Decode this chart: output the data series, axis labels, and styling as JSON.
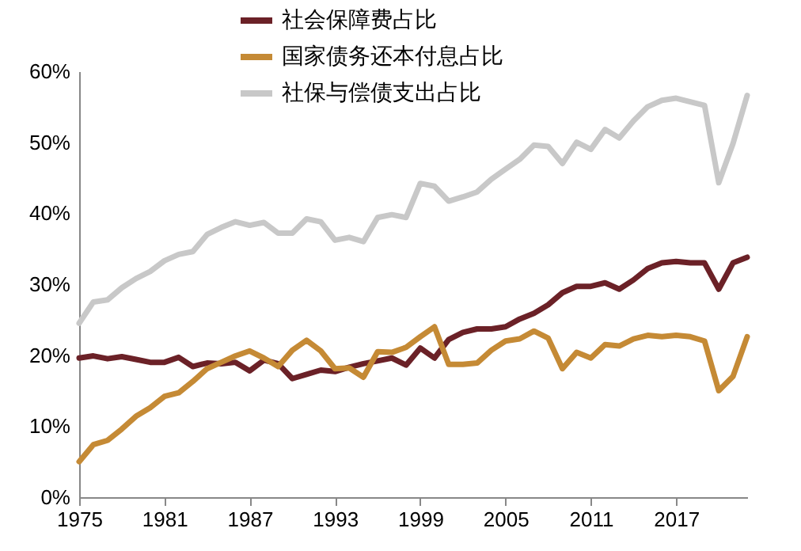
{
  "chart_data": {
    "type": "line",
    "x": [
      1975,
      1976,
      1977,
      1978,
      1979,
      1980,
      1981,
      1982,
      1983,
      1984,
      1985,
      1986,
      1987,
      1988,
      1989,
      1990,
      1991,
      1992,
      1993,
      1994,
      1995,
      1996,
      1997,
      1998,
      1999,
      2000,
      2001,
      2002,
      2003,
      2004,
      2005,
      2006,
      2007,
      2008,
      2009,
      2010,
      2011,
      2012,
      2013,
      2014,
      2015,
      2016,
      2017,
      2018,
      2019,
      2020,
      2021,
      2022
    ],
    "series": [
      {
        "name": "社会保障费占比",
        "color": "#6b2127",
        "values": [
          19.6,
          19.9,
          19.5,
          19.8,
          19.4,
          19,
          19,
          19.7,
          18.4,
          18.9,
          18.8,
          19,
          17.8,
          19.3,
          18.8,
          16.7,
          17.3,
          17.9,
          17.7,
          18.3,
          18.8,
          19.2,
          19.6,
          18.6,
          21,
          19.6,
          22.2,
          23.2,
          23.7,
          23.7,
          24,
          25.1,
          25.9,
          27.1,
          28.8,
          29.7,
          29.7,
          30.2,
          29.3,
          30.6,
          32.2,
          33,
          33.2,
          33,
          33,
          29.3,
          33,
          33.8
        ]
      },
      {
        "name": "国家债务还本付息占比",
        "color": "#c58a35",
        "values": [
          5,
          7.4,
          8,
          9.6,
          11.4,
          12.6,
          14.2,
          14.7,
          16.3,
          18.1,
          19,
          19.9,
          20.6,
          19.6,
          18.4,
          20.7,
          22.1,
          20.6,
          18.1,
          18.2,
          16.9,
          20.5,
          20.4,
          21.1,
          22.6,
          24,
          18.7,
          18.7,
          18.9,
          20.7,
          22,
          22.3,
          23.4,
          22.4,
          18.1,
          20.4,
          19.6,
          21.5,
          21.3,
          22.3,
          22.8,
          22.6,
          22.8,
          22.6,
          22,
          15,
          17,
          22.6
        ]
      },
      {
        "name": "社保与偿债支出占比",
        "color": "#c8c8c8",
        "values": [
          24.5,
          27.5,
          27.8,
          29.5,
          30.8,
          31.8,
          33.3,
          34.2,
          34.6,
          37,
          38,
          38.8,
          38.3,
          38.7,
          37.2,
          37.2,
          39.2,
          38.8,
          36.2,
          36.6,
          36,
          39.4,
          39.8,
          39.4,
          44.2,
          43.8,
          41.7,
          42.3,
          43,
          44.8,
          46.2,
          47.6,
          49.6,
          49.4,
          47,
          50,
          49,
          51.8,
          50.6,
          53,
          55,
          55.9,
          56.2,
          55.7,
          55.2,
          44.3,
          49.8,
          56.6
        ]
      }
    ],
    "xlim": [
      1975,
      2022
    ],
    "xticks": [
      1975,
      1981,
      1987,
      1993,
      1999,
      2005,
      2011,
      2017
    ],
    "ylim": [
      0,
      60
    ],
    "yticks": [
      {
        "value": 0,
        "label": "0%"
      },
      {
        "value": 10,
        "label": "10%"
      },
      {
        "value": 20,
        "label": "20%"
      },
      {
        "value": 30,
        "label": "30%"
      },
      {
        "value": 40,
        "label": "40%"
      },
      {
        "value": 50,
        "label": "50%"
      },
      {
        "value": 60,
        "label": "60%"
      }
    ],
    "grid": false,
    "legend": "top",
    "marker": "none",
    "line_style": "solid"
  }
}
